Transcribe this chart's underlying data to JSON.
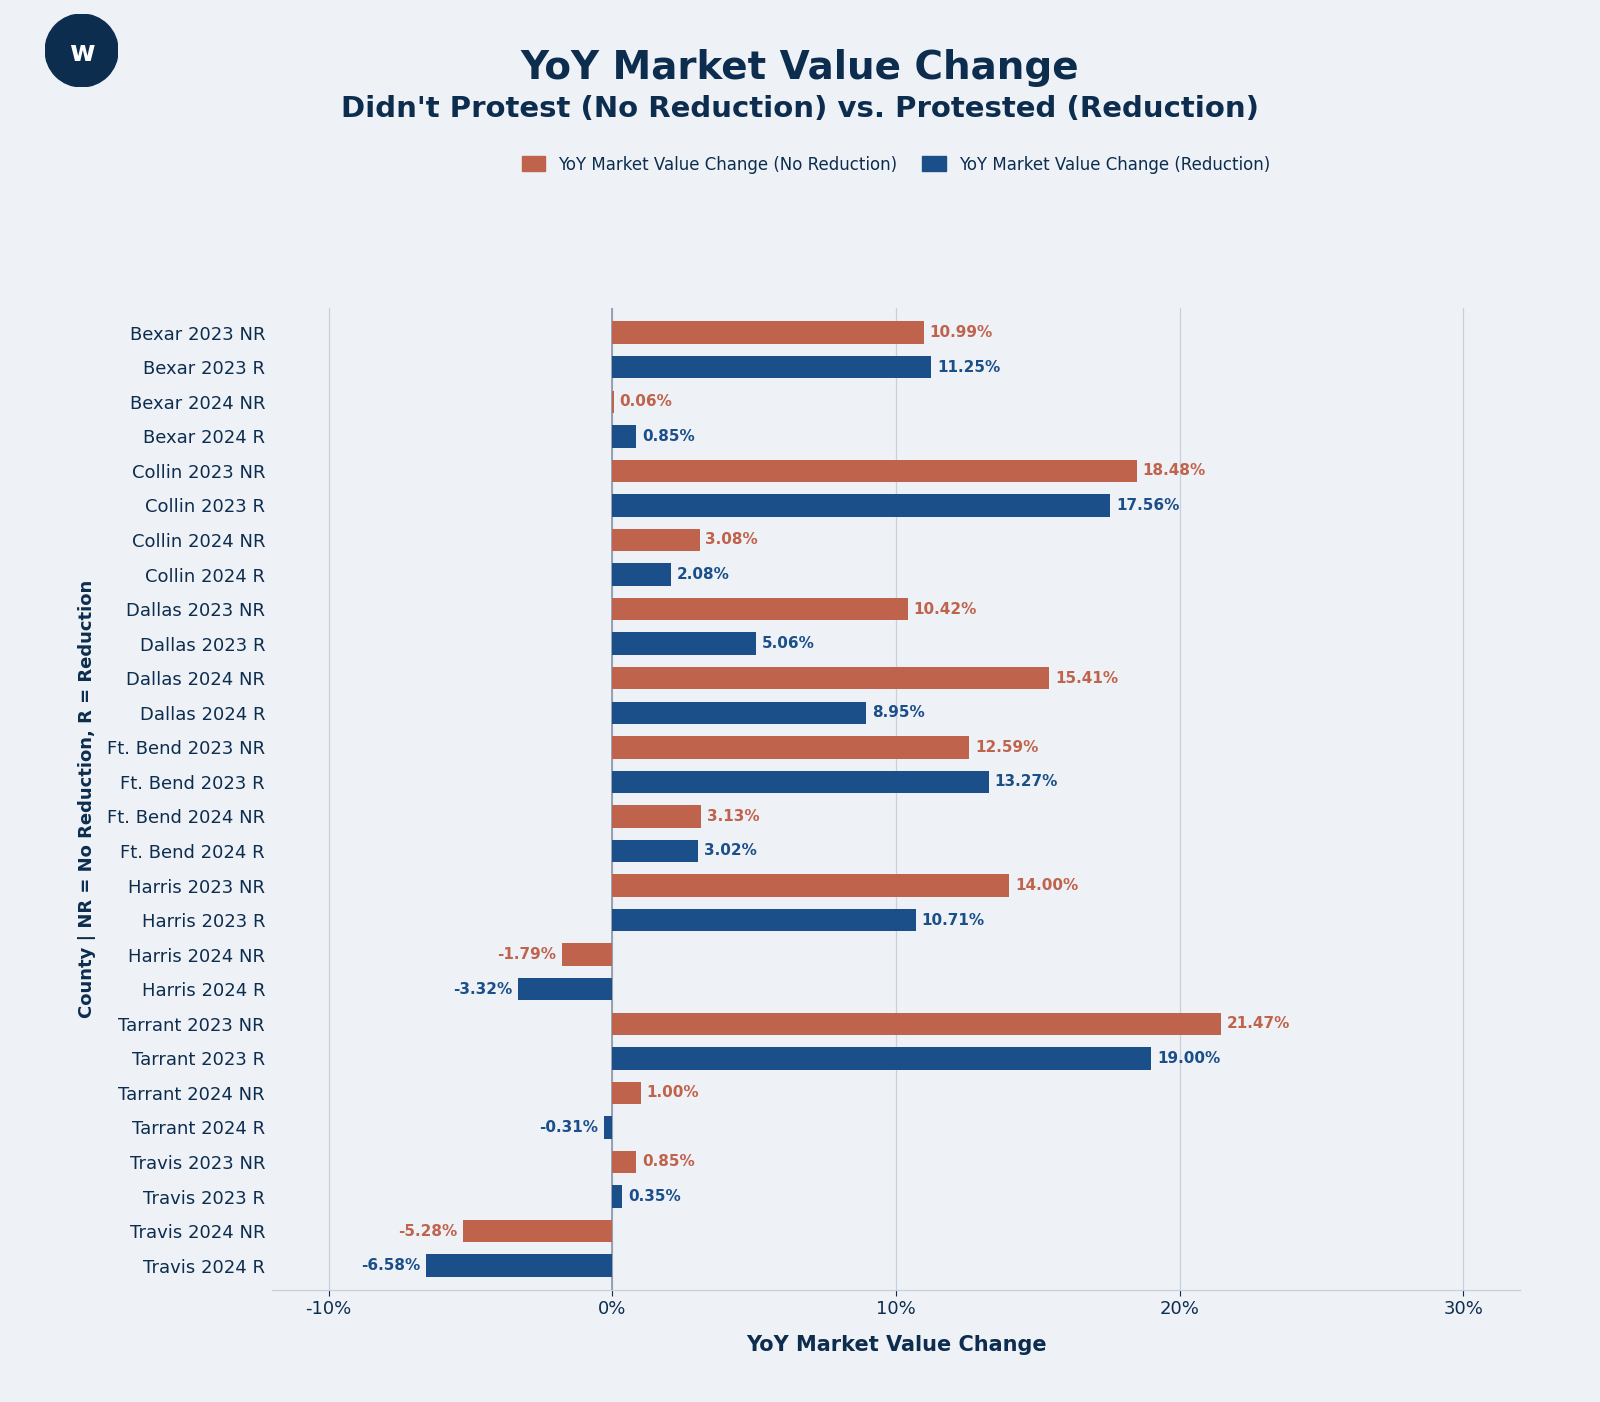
{
  "title": "YoY Market Value Change",
  "subtitle": "Didn't Protest (No Reduction) vs. Protested (Reduction)",
  "xlabel": "YoY Market Value Change",
  "ylabel": "County | NR = No Reduction, R = Reduction",
  "background_color": "#eef1f6",
  "title_color": "#0d2d4f",
  "bar_color_nr": "#c0634c",
  "bar_color_r": "#1b4f8a",
  "legend_nr": "YoY Market Value Change (No Reduction)",
  "legend_r": "YoY Market Value Change (Reduction)",
  "categories": [
    "Bexar 2023 NR",
    "Bexar 2023 R",
    "Bexar 2024 NR",
    "Bexar 2024 R",
    "Collin 2023 NR",
    "Collin 2023 R",
    "Collin 2024 NR",
    "Collin 2024 R",
    "Dallas 2023 NR",
    "Dallas 2023 R",
    "Dallas 2024 NR",
    "Dallas 2024 R",
    "Ft. Bend 2023 NR",
    "Ft. Bend 2023 R",
    "Ft. Bend 2024 NR",
    "Ft. Bend 2024 R",
    "Harris 2023 NR",
    "Harris 2023 R",
    "Harris 2024 NR",
    "Harris 2024 R",
    "Tarrant 2023 NR",
    "Tarrant 2023 R",
    "Tarrant 2024 NR",
    "Tarrant 2024 R",
    "Travis 2023 NR",
    "Travis 2023 R",
    "Travis 2024 NR",
    "Travis 2024 R"
  ],
  "values": [
    10.99,
    11.25,
    0.06,
    0.85,
    18.48,
    17.56,
    3.08,
    2.08,
    10.42,
    5.06,
    15.41,
    8.95,
    12.59,
    13.27,
    3.13,
    3.02,
    14.0,
    10.71,
    -1.79,
    -3.32,
    21.47,
    19.0,
    1.0,
    -0.31,
    0.85,
    0.35,
    -5.28,
    -6.58
  ],
  "bar_types": [
    "NR",
    "R",
    "NR",
    "R",
    "NR",
    "R",
    "NR",
    "R",
    "NR",
    "R",
    "NR",
    "R",
    "NR",
    "R",
    "NR",
    "R",
    "NR",
    "R",
    "NR",
    "R",
    "NR",
    "R",
    "NR",
    "R",
    "NR",
    "R",
    "NR",
    "R"
  ],
  "xlim": [
    -12,
    32
  ],
  "xticks": [
    -10,
    0,
    10,
    20,
    30
  ],
  "xtick_labels": [
    "-10%",
    "0%",
    "10%",
    "20%",
    "30%"
  ],
  "title_fontsize": 28,
  "subtitle_fontsize": 21,
  "axis_label_fontsize": 15,
  "tick_label_fontsize": 13,
  "bar_label_fontsize": 11,
  "legend_fontsize": 12,
  "ylabel_fontsize": 13,
  "logo_color": "#0d2d4f",
  "logo_text": "w"
}
